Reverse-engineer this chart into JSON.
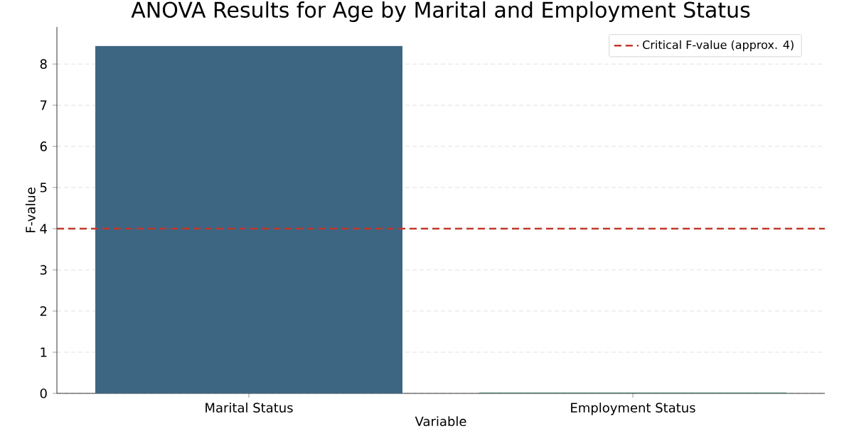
{
  "chart_data": {
    "type": "bar",
    "title": "ANOVA Results for Age by Marital and Employment Status",
    "xlabel": "Variable",
    "ylabel": "F-value",
    "categories": [
      "Marital Status",
      "Employment Status"
    ],
    "values": [
      8.44,
      0.02
    ],
    "colors": [
      "#3d6683",
      "#4f7a6e"
    ],
    "ylim": [
      0,
      8.9
    ],
    "yticks": [
      0,
      1,
      2,
      3,
      4,
      5,
      6,
      7,
      8
    ],
    "grid": "y",
    "legend": "top right",
    "ref_lines": [
      {
        "axis": "y",
        "value": 4,
        "label": "Critical F-value (approx. 4)",
        "color": "#c0392b",
        "line_style": "dashed"
      }
    ]
  }
}
